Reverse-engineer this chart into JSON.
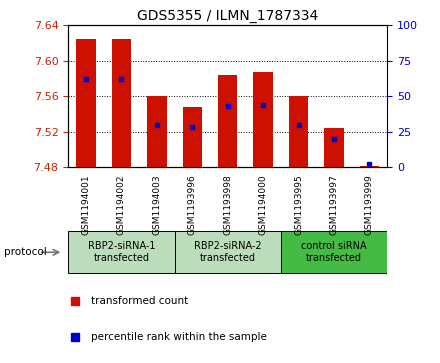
{
  "title": "GDS5355 / ILMN_1787334",
  "samples": [
    "GSM1194001",
    "GSM1194002",
    "GSM1194003",
    "GSM1193996",
    "GSM1193998",
    "GSM1194000",
    "GSM1193995",
    "GSM1193997",
    "GSM1193999"
  ],
  "transformed_counts": [
    7.625,
    7.625,
    7.56,
    7.548,
    7.584,
    7.587,
    7.56,
    7.524,
    7.481
  ],
  "percentile_ranks": [
    62,
    62,
    30,
    28,
    43,
    44,
    30,
    20,
    2
  ],
  "ylim_left": [
    7.48,
    7.64
  ],
  "ylim_right": [
    0,
    100
  ],
  "yticks_left": [
    7.48,
    7.52,
    7.56,
    7.6,
    7.64
  ],
  "yticks_right": [
    0,
    25,
    50,
    75,
    100
  ],
  "bar_color": "#cc1100",
  "dot_color": "#0000cc",
  "baseline": 7.48,
  "groups": [
    {
      "label": "RBP2-siRNA-1\ntransfected",
      "start": 0,
      "end": 3,
      "color": "#bbddbb"
    },
    {
      "label": "RBP2-siRNA-2\ntransfected",
      "start": 3,
      "end": 6,
      "color": "#bbddbb"
    },
    {
      "label": "control siRNA\ntransfected",
      "start": 6,
      "end": 9,
      "color": "#44bb44"
    }
  ],
  "legend_bar_label": "transformed count",
  "legend_dot_label": "percentile rank within the sample",
  "protocol_label": "protocol",
  "background_color": "#ffffff",
  "plot_bg_color": "#ffffff",
  "tick_color_left": "#cc2200",
  "tick_color_right": "#0000cc"
}
